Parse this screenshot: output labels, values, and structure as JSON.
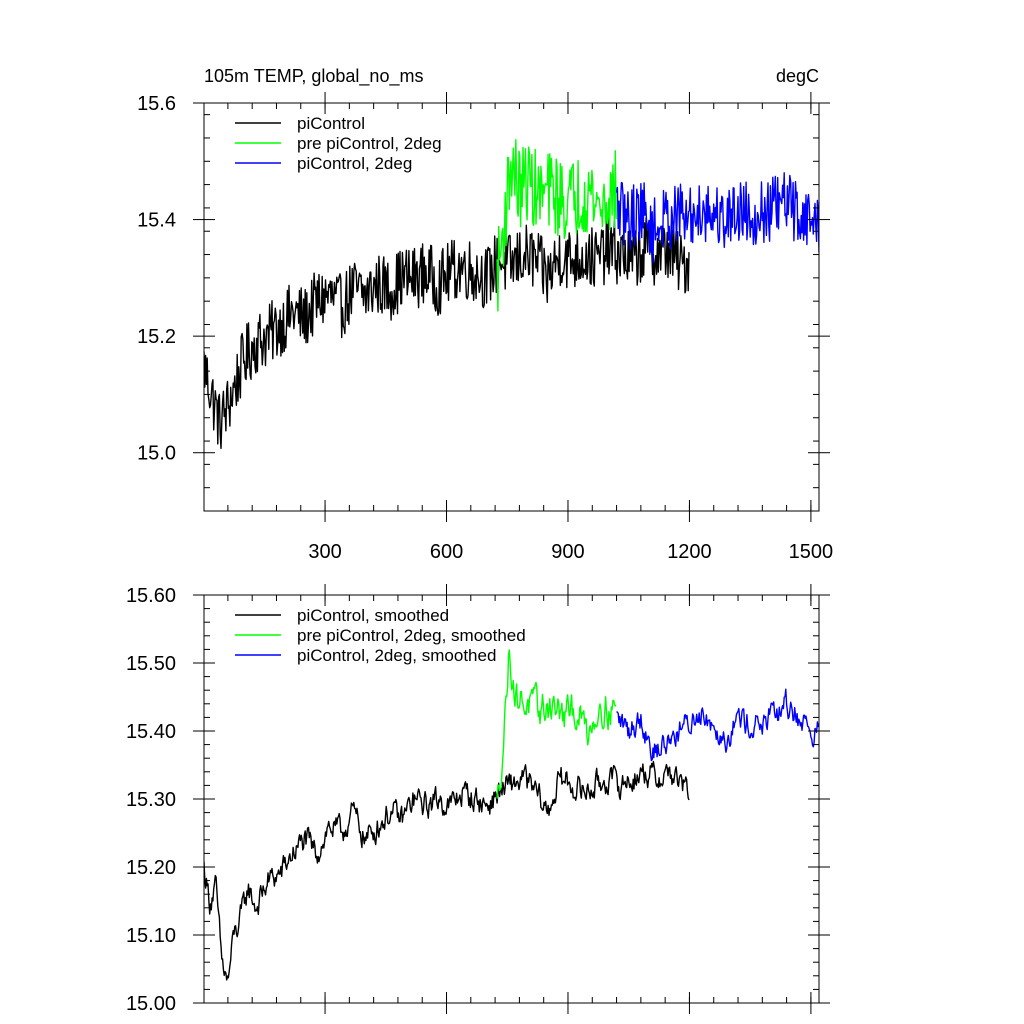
{
  "chart_data": [
    {
      "type": "line",
      "title_left": "105m TEMP, global_no_ms",
      "title_right": "degC",
      "xlim": [
        1,
        1520
      ],
      "ylim": [
        14.9,
        15.6
      ],
      "x_ticks": [
        300,
        600,
        900,
        1200,
        1500
      ],
      "x_tick_labels": [
        "300",
        "600",
        "900",
        "1200",
        "1500"
      ],
      "y_ticks": [
        15.0,
        15.2,
        15.4,
        15.6
      ],
      "y_tick_labels": [
        "15.0",
        "15.2",
        "15.4",
        "15.6"
      ],
      "y_minor_step": 0.04,
      "x_minor_step": 60,
      "grid": false,
      "legend_position": "top-left",
      "series": [
        {
          "name": "piControl",
          "color": "#000000",
          "x": [
            1,
            20,
            40,
            60,
            80,
            100,
            130,
            160,
            190,
            220,
            250,
            280,
            310,
            340,
            370,
            400,
            430,
            460,
            490,
            520,
            550,
            580,
            610,
            640,
            670,
            700,
            730,
            760,
            790,
            820,
            850,
            880,
            910,
            940,
            970,
            1000,
            1030,
            1060,
            1090,
            1120,
            1150,
            1180,
            1200
          ],
          "values": [
            15.15,
            15.1,
            15.05,
            15.08,
            15.12,
            15.16,
            15.19,
            15.2,
            15.22,
            15.24,
            15.23,
            15.26,
            15.27,
            15.25,
            15.28,
            15.27,
            15.29,
            15.28,
            15.3,
            15.3,
            15.31,
            15.29,
            15.31,
            15.32,
            15.31,
            15.3,
            15.33,
            15.32,
            15.34,
            15.33,
            15.3,
            15.34,
            15.33,
            15.34,
            15.33,
            15.35,
            15.34,
            15.33,
            15.35,
            15.34,
            15.35,
            15.32,
            15.33
          ],
          "noise": 0.055
        },
        {
          "name": "pre piControl, 2deg",
          "color": "#00ff00",
          "x": [
            725,
            740,
            760,
            780,
            800,
            830,
            860,
            890,
            920,
            950,
            980,
            1000,
            1020
          ],
          "values": [
            15.3,
            15.38,
            15.5,
            15.45,
            15.47,
            15.44,
            15.45,
            15.43,
            15.44,
            15.45,
            15.42,
            15.44,
            15.45
          ],
          "noise": 0.07
        },
        {
          "name": "piControl, 2deg",
          "color": "#0000ff",
          "x": [
            1020,
            1050,
            1080,
            1110,
            1140,
            1170,
            1200,
            1230,
            1260,
            1290,
            1320,
            1350,
            1380,
            1410,
            1440,
            1470,
            1500,
            1520
          ],
          "values": [
            15.42,
            15.4,
            15.42,
            15.38,
            15.4,
            15.41,
            15.4,
            15.42,
            15.41,
            15.4,
            15.42,
            15.41,
            15.41,
            15.42,
            15.43,
            15.41,
            15.4,
            15.39
          ],
          "noise": 0.055
        }
      ]
    },
    {
      "type": "line",
      "title_left": "",
      "title_right": "",
      "xlim": [
        1,
        1520
      ],
      "ylim": [
        15.0,
        15.6
      ],
      "x_ticks": [
        300,
        600,
        900,
        1200,
        1500
      ],
      "x_tick_labels": [],
      "y_ticks": [
        15.0,
        15.1,
        15.2,
        15.3,
        15.4,
        15.5,
        15.6
      ],
      "y_tick_labels": [
        "15.00",
        "15.10",
        "15.20",
        "15.30",
        "15.40",
        "15.50",
        "15.60"
      ],
      "y_minor_step": 0.02,
      "x_minor_step": 60,
      "grid": false,
      "legend_position": "top-left",
      "series": [
        {
          "name": "piControl, smoothed",
          "color": "#000000",
          "x": [
            1,
            15,
            30,
            45,
            60,
            75,
            90,
            110,
            130,
            160,
            190,
            220,
            250,
            280,
            310,
            340,
            370,
            400,
            430,
            460,
            490,
            520,
            550,
            580,
            610,
            640,
            670,
            700,
            730,
            760,
            790,
            820,
            850,
            880,
            910,
            940,
            970,
            1000,
            1030,
            1060,
            1090,
            1120,
            1150,
            1180,
            1200
          ],
          "values": [
            15.2,
            15.15,
            15.17,
            15.06,
            15.03,
            15.1,
            15.12,
            15.17,
            15.14,
            15.18,
            15.19,
            15.22,
            15.24,
            15.22,
            15.26,
            15.25,
            15.28,
            15.24,
            15.26,
            15.28,
            15.27,
            15.3,
            15.29,
            15.3,
            15.29,
            15.31,
            15.3,
            15.29,
            15.31,
            15.32,
            15.33,
            15.31,
            15.28,
            15.33,
            15.32,
            15.31,
            15.32,
            15.33,
            15.32,
            15.33,
            15.34,
            15.33,
            15.34,
            15.32,
            15.31
          ],
          "noise": 0.022
        },
        {
          "name": "pre piControl, 2deg, smoothed",
          "color": "#00ff00",
          "x": [
            725,
            740,
            755,
            770,
            800,
            830,
            860,
            890,
            920,
            950,
            980,
            1000,
            1020
          ],
          "values": [
            15.29,
            15.38,
            15.52,
            15.45,
            15.44,
            15.43,
            15.44,
            15.42,
            15.43,
            15.4,
            15.44,
            15.43,
            15.44
          ],
          "noise": 0.028
        },
        {
          "name": "piControl, 2deg, smoothed",
          "color": "#0000ff",
          "x": [
            1020,
            1050,
            1080,
            1110,
            1140,
            1170,
            1200,
            1230,
            1260,
            1290,
            1320,
            1350,
            1380,
            1410,
            1440,
            1470,
            1500,
            1520
          ],
          "values": [
            15.42,
            15.4,
            15.42,
            15.37,
            15.38,
            15.4,
            15.41,
            15.43,
            15.41,
            15.39,
            15.42,
            15.41,
            15.41,
            15.42,
            15.44,
            15.42,
            15.4,
            15.4
          ],
          "noise": 0.022
        }
      ]
    }
  ]
}
